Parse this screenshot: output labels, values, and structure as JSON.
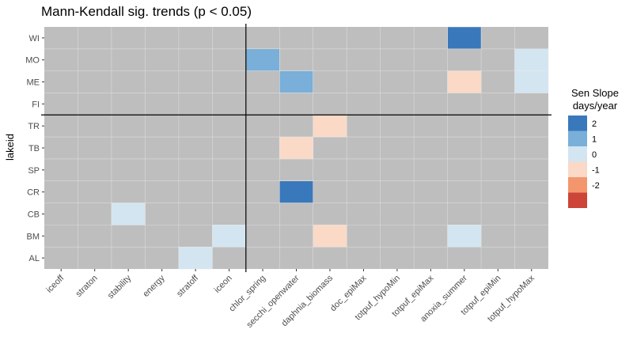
{
  "chart_data": {
    "type": "heatmap",
    "title": "Mann-Kendall sig. trends (p < 0.05)",
    "xlabel": "",
    "ylabel": "lakeid",
    "x_categories": [
      "iceoff",
      "straton",
      "stability",
      "energy",
      "stratoff",
      "iceon",
      "chlor_spring",
      "secchi_openwater",
      "daphnia_biomass",
      "doc_epiMax",
      "totpuf_hypoMin",
      "totpuf_epiMax",
      "anoxia_summer",
      "totpuf_epiMin",
      "totpuf_hypoMax"
    ],
    "y_categories": [
      "WI",
      "MO",
      "ME",
      "FI",
      "TR",
      "TB",
      "SP",
      "CR",
      "CB",
      "BM",
      "AL"
    ],
    "cells": [
      {
        "x": "anoxia_summer",
        "y": "WI",
        "value": 2
      },
      {
        "x": "chlor_spring",
        "y": "MO",
        "value": 1
      },
      {
        "x": "totpuf_hypoMax",
        "y": "MO",
        "value": 0
      },
      {
        "x": "secchi_openwater",
        "y": "ME",
        "value": 1
      },
      {
        "x": "anoxia_summer",
        "y": "ME",
        "value": -1
      },
      {
        "x": "totpuf_hypoMax",
        "y": "ME",
        "value": 0
      },
      {
        "x": "daphnia_biomass",
        "y": "TR",
        "value": -1
      },
      {
        "x": "secchi_openwater",
        "y": "TB",
        "value": -1
      },
      {
        "x": "secchi_openwater",
        "y": "CR",
        "value": 2
      },
      {
        "x": "stability",
        "y": "CB",
        "value": 0
      },
      {
        "x": "iceon",
        "y": "BM",
        "value": 0
      },
      {
        "x": "daphnia_biomass",
        "y": "BM",
        "value": -1
      },
      {
        "x": "anoxia_summer",
        "y": "BM",
        "value": 0
      },
      {
        "x": "stratoff",
        "y": "AL",
        "value": 0
      }
    ],
    "na_color": "#bebebe",
    "vertical_separator_after_x": "iceon",
    "horizontal_separator_after_y": "FI",
    "grid": true,
    "legend": {
      "title_line1": "Sen Slope",
      "title_line2": "days/year",
      "placement": "right",
      "entries": [
        {
          "label": "2",
          "color": "#3a78bc"
        },
        {
          "label": "1",
          "color": "#79afd8"
        },
        {
          "label": "0",
          "color": "#d3e5f0"
        },
        {
          "label": "-1",
          "color": "#fad9c6"
        },
        {
          "label": "-2",
          "color": "#f4966d"
        },
        {
          "label": "",
          "color": "#cc4538"
        }
      ]
    }
  }
}
